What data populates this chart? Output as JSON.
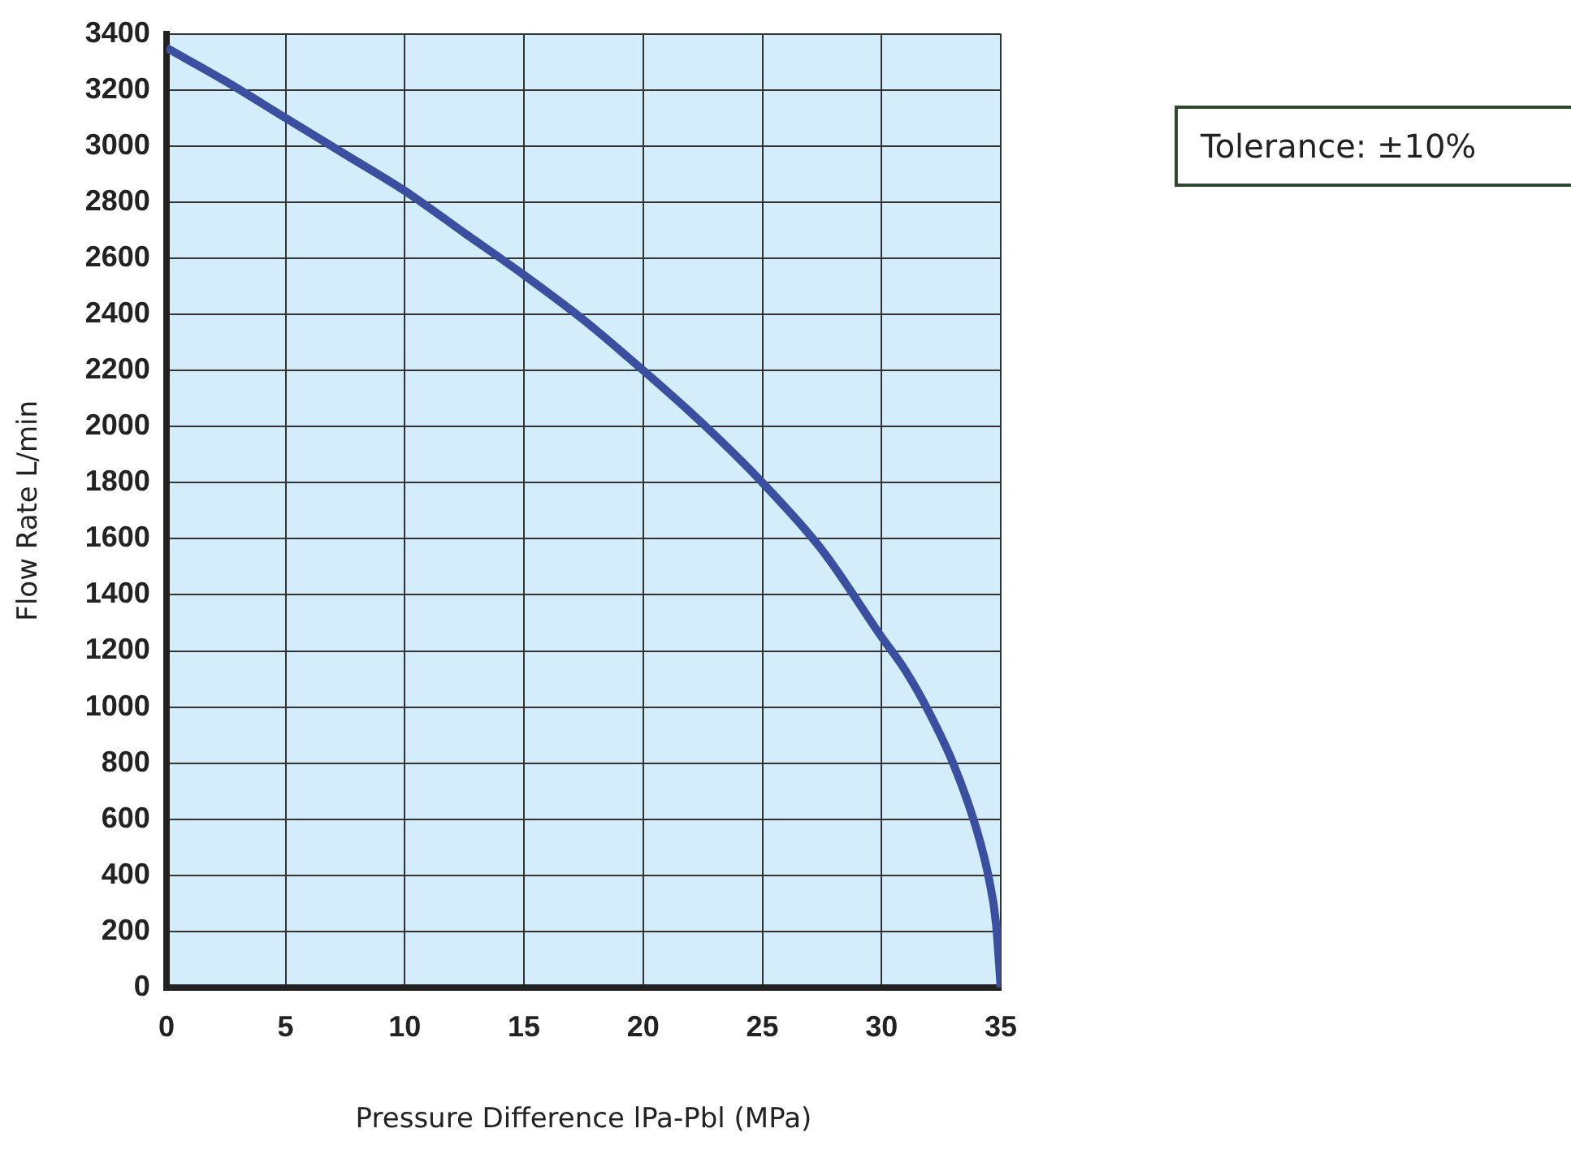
{
  "chart_data": {
    "type": "line",
    "xlabel": "Pressure Difference lPa-Pbl (MPa)",
    "ylabel": "Flow Rate L/min",
    "annotations": [
      "Tolerance:  ±10%"
    ],
    "x": [
      0,
      2.5,
      5,
      7.5,
      10,
      12.5,
      15,
      17.5,
      20,
      22.5,
      25,
      27.5,
      30,
      31,
      32,
      33,
      34,
      34.5,
      34.8,
      35
    ],
    "series": [
      {
        "color": "#3a4fa0",
        "values": [
          3350,
          3230,
          3100,
          2970,
          2840,
          2690,
          2540,
          2380,
          2200,
          2010,
          1800,
          1560,
          1250,
          1130,
          980,
          800,
          560,
          390,
          230,
          0
        ]
      }
    ],
    "xlim": [
      0,
      35
    ],
    "xticks": [
      0,
      5,
      10,
      15,
      20,
      25,
      30,
      35
    ],
    "ylim": [
      0,
      3400
    ],
    "yticks": [
      0,
      200,
      400,
      600,
      800,
      1000,
      1200,
      1400,
      1600,
      1800,
      2000,
      2200,
      2400,
      2600,
      2800,
      3000,
      3200,
      3400
    ],
    "grid": true,
    "legend": false,
    "marker": "none",
    "line_style": "solid"
  }
}
